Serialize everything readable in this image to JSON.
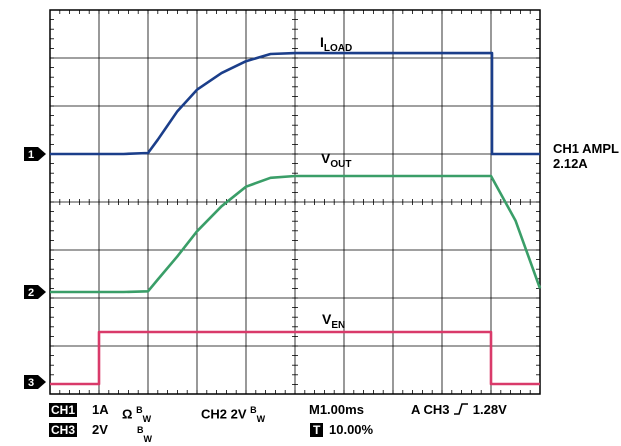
{
  "chart_data": {
    "type": "line",
    "grid": true,
    "x": [
      0,
      0.5,
      1,
      1.5,
      2,
      2.2,
      2.6,
      3,
      3.5,
      4,
      4.5,
      5,
      5.5,
      6,
      6.5,
      7,
      7.5,
      8,
      8.5,
      9,
      9.5,
      10
    ],
    "series": [
      {
        "name": "I_LOAD",
        "color": "#1b3e8a",
        "values": [
          0,
          0,
          0,
          0,
          0.02,
          0.3,
          0.9,
          1.35,
          1.7,
          1.95,
          2.1,
          2.12,
          2.12,
          2.12,
          2.12,
          2.12,
          2.12,
          2.12,
          2.12,
          2.12,
          0,
          0
        ]
      },
      {
        "name": "V_OUT",
        "color": "#3a9e68",
        "values": [
          0,
          0,
          0,
          0,
          0.02,
          0.35,
          1.0,
          1.7,
          2.4,
          2.95,
          3.2,
          3.25,
          3.25,
          3.25,
          3.25,
          3.25,
          3.25,
          3.25,
          3.25,
          3.25,
          2.0,
          0.1
        ]
      },
      {
        "name": "V_EN",
        "color": "#d93a6a",
        "values": [
          0,
          0,
          0,
          0,
          0,
          0,
          0,
          0,
          0,
          0,
          0,
          0,
          0,
          0,
          0,
          0,
          0,
          0,
          0,
          0,
          0,
          0
        ]
      }
    ],
    "trace_labels": [
      "I",
      "LOAD",
      "V",
      "OUT",
      "V",
      "EN"
    ],
    "markers": [
      "1",
      "2",
      "3"
    ],
    "side_note": [
      "CH1 AMPL",
      "2.12A"
    ]
  },
  "status": {
    "ch1_tag": "CH1",
    "ch1_text": "1A",
    "ch1_ohm": "Ω",
    "bw_b": "B",
    "bw_w": "W",
    "ch2_text": "CH2  2V",
    "time_text": "M1.00ms",
    "trigger_text": "A  CH3",
    "trigger_level": "1.28V",
    "ch3_tag": "CH3",
    "ch3_text": "2V",
    "t_tag": "T",
    "t_text": "10.00%"
  }
}
